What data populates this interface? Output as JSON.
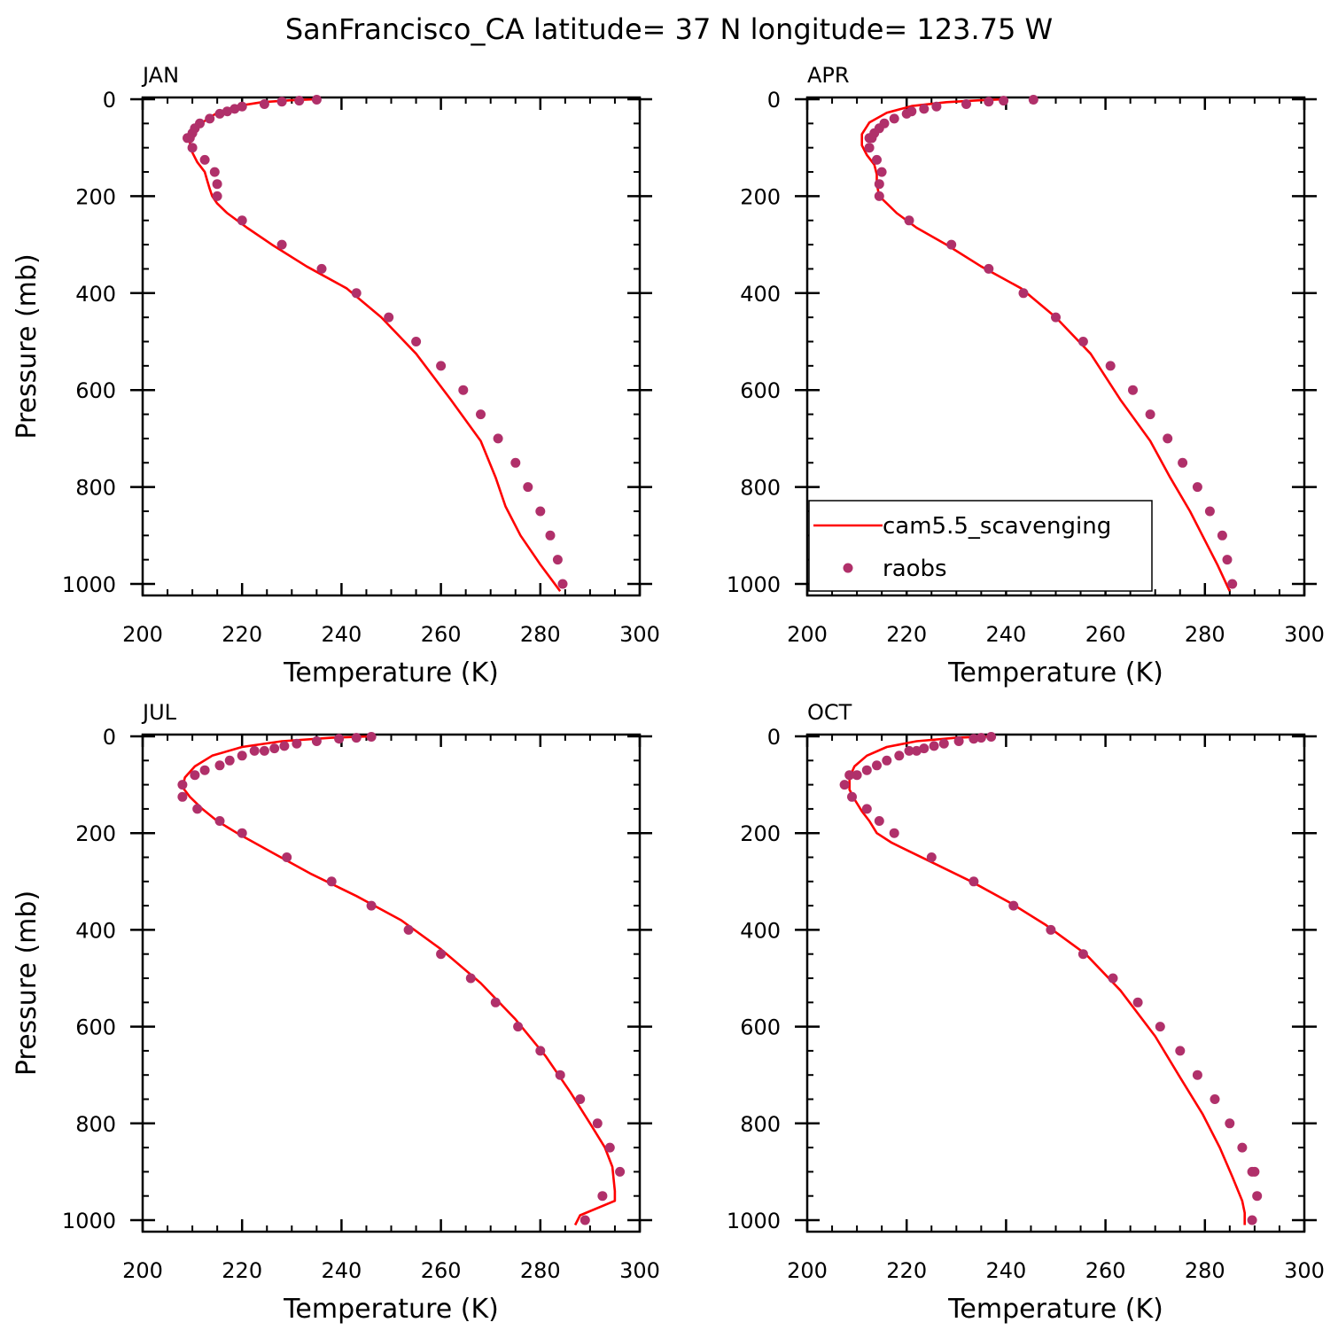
{
  "title": "SanFrancisco_CA  latitude= 37 N longitude= 123.75 W",
  "colors": {
    "model": "#ff0000",
    "obs": "#b0306a",
    "axis": "#000000"
  },
  "legend": {
    "model_label": "cam5.5_scavenging",
    "obs_label": "raobs"
  },
  "chart_data": [
    {
      "type": "line",
      "title": "JAN",
      "xlabel": "Temperature (K)",
      "ylabel": "Pressure (mb)",
      "xlim": [
        200,
        300
      ],
      "ylim": [
        1025,
        0
      ],
      "y_inverted": true,
      "xticks": [
        "200",
        "220",
        "240",
        "260",
        "280",
        "300"
      ],
      "yticks": [
        "0",
        "200",
        "400",
        "600",
        "800",
        "1000"
      ],
      "series": [
        {
          "name": "cam5.5_scavenging",
          "kind": "line",
          "x": [
            235,
            230,
            224,
            219,
            215,
            212,
            210,
            209.5,
            210,
            211,
            212.5,
            213,
            213.5,
            214,
            215,
            217,
            221,
            226,
            233,
            241,
            248,
            255,
            262,
            268,
            271,
            273,
            276,
            280,
            284
          ],
          "y": [
            0,
            2,
            6,
            14,
            28,
            48,
            72,
            90,
            110,
            130,
            150,
            168,
            185,
            200,
            215,
            235,
            265,
            300,
            345,
            390,
            450,
            525,
            620,
            705,
            780,
            840,
            900,
            960,
            1015
          ]
        },
        {
          "name": "raobs",
          "kind": "scatter",
          "x": [
            235,
            231.5,
            228,
            224.5,
            220,
            218.5,
            217,
            215.5,
            213.5,
            211.5,
            210.5,
            210,
            209.5,
            209,
            210,
            212.5,
            214.5,
            215,
            215,
            220,
            228,
            236,
            243,
            249.5,
            255,
            260,
            264.5,
            268,
            271.5,
            275,
            277.5,
            280,
            282,
            283.5,
            284.5
          ],
          "y": [
            1,
            3,
            5,
            10,
            15,
            20,
            25,
            30,
            40,
            50,
            60,
            70,
            80,
            80,
            100,
            125,
            150,
            175,
            200,
            250,
            300,
            350,
            400,
            450,
            500,
            550,
            600,
            650,
            700,
            750,
            800,
            850,
            900,
            950,
            1000
          ]
        }
      ]
    },
    {
      "type": "line",
      "title": "APR",
      "xlabel": "Temperature (K)",
      "ylabel": "",
      "xlim": [
        200,
        300
      ],
      "ylim": [
        1025,
        0
      ],
      "y_inverted": true,
      "xticks": [
        "200",
        "220",
        "240",
        "260",
        "280",
        "300"
      ],
      "yticks": [
        "0",
        "200",
        "400",
        "600",
        "800",
        "1000"
      ],
      "series": [
        {
          "name": "cam5.5_scavenging",
          "kind": "line",
          "x": [
            240,
            235,
            228,
            221,
            216,
            212.5,
            211,
            211,
            212,
            213.5,
            214,
            214,
            214.5,
            216,
            218,
            222,
            228,
            235,
            243,
            250,
            257,
            263,
            269,
            273,
            277,
            280,
            282.5,
            285
          ],
          "y": [
            0,
            2,
            6,
            14,
            28,
            48,
            72,
            95,
            115,
            135,
            155,
            175,
            200,
            215,
            235,
            265,
            300,
            345,
            390,
            450,
            525,
            620,
            705,
            780,
            850,
            910,
            960,
            1015
          ]
        },
        {
          "name": "raobs",
          "kind": "scatter",
          "x": [
            245.5,
            239.5,
            236.5,
            232,
            226,
            223.5,
            221,
            220,
            217.5,
            215.5,
            214.5,
            213.5,
            213,
            212.5,
            212.5,
            214,
            215,
            214.5,
            214.5,
            220.5,
            229,
            236.5,
            243.5,
            250,
            255.5,
            261,
            265.5,
            269,
            272.5,
            275.5,
            278.5,
            281,
            283.5,
            284.5,
            285.5
          ],
          "y": [
            1,
            3,
            5,
            10,
            15,
            20,
            25,
            30,
            40,
            50,
            60,
            70,
            80,
            80,
            100,
            125,
            150,
            175,
            200,
            250,
            300,
            350,
            400,
            450,
            500,
            550,
            600,
            650,
            700,
            750,
            800,
            850,
            900,
            950,
            1000
          ]
        }
      ]
    },
    {
      "type": "line",
      "title": "JUL",
      "xlabel": "Temperature (K)",
      "ylabel": "Pressure (mb)",
      "xlim": [
        200,
        300
      ],
      "ylim": [
        1025,
        0
      ],
      "y_inverted": true,
      "xticks": [
        "200",
        "220",
        "240",
        "260",
        "280",
        "300"
      ],
      "yticks": [
        "0",
        "200",
        "400",
        "600",
        "800",
        "1000"
      ],
      "series": [
        {
          "name": "cam5.5_scavenging",
          "kind": "line",
          "x": [
            246,
            238,
            228,
            220,
            214,
            210.5,
            208.5,
            208,
            209.5,
            212,
            215,
            219,
            226,
            234,
            243,
            252,
            260,
            268,
            275,
            281,
            286,
            290,
            293,
            294.5,
            295,
            295,
            288,
            287
          ],
          "y": [
            0,
            3,
            10,
            22,
            40,
            62,
            85,
            105,
            125,
            150,
            175,
            200,
            240,
            285,
            330,
            380,
            440,
            510,
            585,
            660,
            735,
            800,
            850,
            890,
            940,
            960,
            990,
            1010
          ]
        },
        {
          "name": "raobs",
          "kind": "scatter",
          "x": [
            246,
            243,
            239.5,
            235,
            231,
            228.5,
            226.5,
            224.5,
            222.5,
            220,
            217.5,
            215.5,
            212.5,
            210.5,
            208,
            208,
            211,
            215.5,
            220,
            229,
            238,
            246,
            253.5,
            260,
            266,
            271,
            275.5,
            280,
            284,
            288,
            291.5,
            294,
            296,
            292.5,
            289
          ],
          "y": [
            1,
            3,
            5,
            10,
            15,
            20,
            25,
            30,
            30,
            40,
            50,
            60,
            70,
            80,
            100,
            125,
            150,
            175,
            200,
            250,
            300,
            350,
            400,
            450,
            500,
            550,
            600,
            650,
            700,
            750,
            800,
            850,
            900,
            950,
            1000
          ]
        }
      ]
    },
    {
      "type": "line",
      "title": "OCT",
      "xlabel": "Temperature (K)",
      "ylabel": "",
      "xlim": [
        200,
        300
      ],
      "ylim": [
        1025,
        0
      ],
      "y_inverted": true,
      "xticks": [
        "200",
        "220",
        "240",
        "260",
        "280",
        "300"
      ],
      "yticks": [
        "0",
        "200",
        "400",
        "600",
        "800",
        "1000"
      ],
      "series": [
        {
          "name": "cam5.5_scavenging",
          "kind": "line",
          "x": [
            237,
            230,
            222,
            216,
            212,
            209.5,
            208.5,
            208.5,
            209.5,
            211,
            212.5,
            214,
            217,
            220,
            226,
            233,
            241,
            248,
            256,
            263,
            270,
            275,
            279.5,
            283,
            285.5,
            287.5,
            288,
            288
          ],
          "y": [
            0,
            3,
            10,
            22,
            40,
            62,
            85,
            110,
            130,
            155,
            175,
            200,
            220,
            235,
            265,
            300,
            345,
            390,
            450,
            525,
            620,
            705,
            780,
            850,
            910,
            960,
            985,
            1010
          ]
        },
        {
          "name": "raobs",
          "kind": "scatter",
          "x": [
            237,
            235,
            233.5,
            230.5,
            227.5,
            225.5,
            223.5,
            222,
            220.5,
            218.5,
            216,
            214,
            212,
            210,
            208.5,
            207.5,
            209,
            212,
            214.5,
            217.5,
            225,
            233.5,
            241.5,
            249,
            255.5,
            261.5,
            266.5,
            271,
            275,
            278.5,
            282,
            285,
            287.5,
            289.5,
            290,
            290.5,
            289.5
          ],
          "y": [
            1,
            3,
            5,
            10,
            15,
            20,
            25,
            30,
            30,
            40,
            50,
            60,
            70,
            80,
            80,
            100,
            125,
            150,
            175,
            200,
            250,
            300,
            350,
            400,
            450,
            500,
            550,
            600,
            650,
            700,
            750,
            800,
            850,
            900,
            900,
            950,
            1000
          ]
        }
      ]
    }
  ]
}
